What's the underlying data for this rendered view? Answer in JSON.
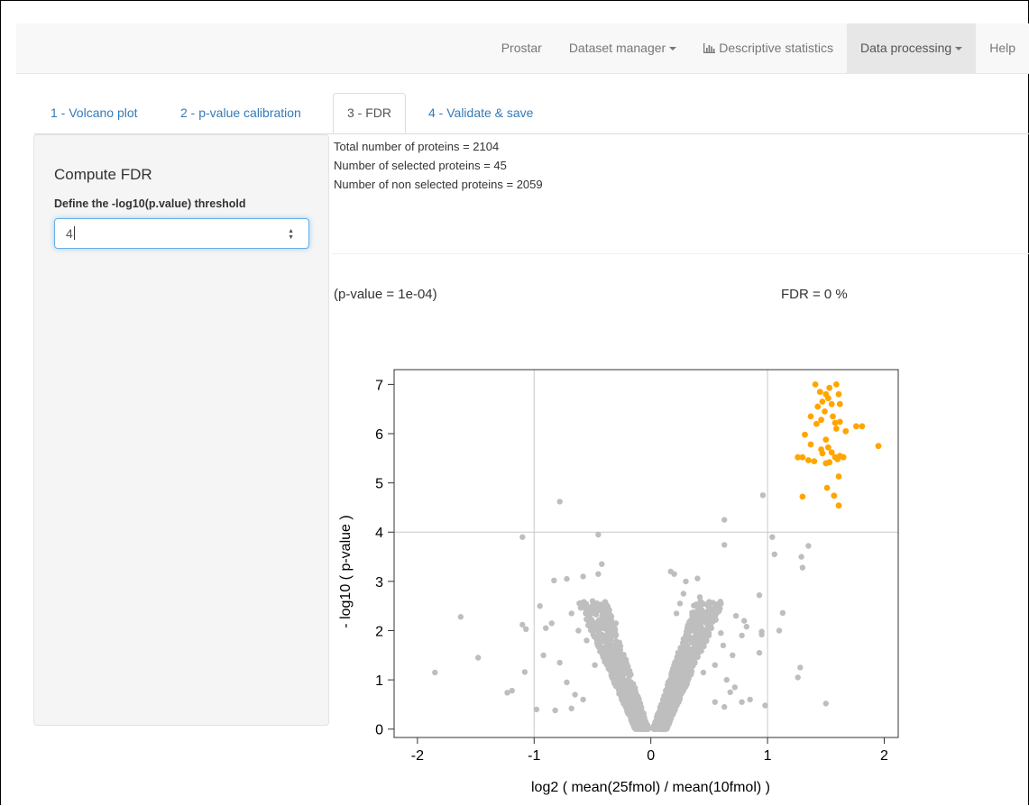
{
  "navbar": {
    "items": [
      {
        "label": "Prostar",
        "active": false,
        "dropdown": false,
        "icon": ""
      },
      {
        "label": "Dataset manager",
        "active": false,
        "dropdown": true,
        "icon": ""
      },
      {
        "label": "Descriptive statistics",
        "active": false,
        "dropdown": false,
        "icon": "bar-chart-icon"
      },
      {
        "label": "Data processing",
        "active": true,
        "dropdown": true,
        "icon": ""
      },
      {
        "label": "Help",
        "active": false,
        "dropdown": false,
        "icon": ""
      }
    ]
  },
  "tabs": [
    {
      "label": "1 - Volcano plot",
      "active": false
    },
    {
      "label": "2 - p-value calibration",
      "active": false
    },
    {
      "label": "3 - FDR",
      "active": true
    },
    {
      "label": "4 - Validate & save",
      "active": false
    }
  ],
  "sidebar": {
    "title": "Compute FDR",
    "threshold_label": "Define the -log10(p.value) threshold",
    "threshold_value": "4"
  },
  "stats": {
    "total": "Total number of proteins = 2104",
    "selected": "Number of selected proteins = 45",
    "non_selected": "Number of non selected proteins = 2059"
  },
  "pvalue_text": "(p-value = 1e-04)",
  "fdr_text": "FDR = 0 %",
  "colors": {
    "selected": "#FFA500",
    "non_selected": "#BEBEBE",
    "link": "#337ab7"
  },
  "chart_data": {
    "type": "scatter",
    "xlabel": "log2 ( mean(25fmol) / mean(10fmol) )",
    "ylabel": "- log10 ( p-value )",
    "xlim": [
      -2.2,
      2.12
    ],
    "ylim": [
      -0.17,
      7.3
    ],
    "xticks": [
      -2,
      -1,
      0,
      1,
      2
    ],
    "yticks": [
      0,
      1,
      2,
      3,
      4,
      5,
      6,
      7
    ],
    "threshold_lines": {
      "x": [
        -1,
        1
      ],
      "y": 4
    },
    "series": [
      {
        "group": "selected",
        "color": "#FFA500",
        "points": [
          [
            1.41,
            7.0
          ],
          [
            1.53,
            6.93
          ],
          [
            1.59,
            7.0
          ],
          [
            1.45,
            6.85
          ],
          [
            1.5,
            6.8
          ],
          [
            1.52,
            6.72
          ],
          [
            1.61,
            6.8
          ],
          [
            1.47,
            6.65
          ],
          [
            1.55,
            6.6
          ],
          [
            1.43,
            6.55
          ],
          [
            1.62,
            6.6
          ],
          [
            1.49,
            6.45
          ],
          [
            1.56,
            6.35
          ],
          [
            1.37,
            6.35
          ],
          [
            1.46,
            6.28
          ],
          [
            1.58,
            6.22
          ],
          [
            1.62,
            6.24
          ],
          [
            1.42,
            6.2
          ],
          [
            1.76,
            6.15
          ],
          [
            1.81,
            6.15
          ],
          [
            1.59,
            6.1
          ],
          [
            1.32,
            5.98
          ],
          [
            1.67,
            6.05
          ],
          [
            1.5,
            5.88
          ],
          [
            1.95,
            5.75
          ],
          [
            1.37,
            5.78
          ],
          [
            1.52,
            5.72
          ],
          [
            1.46,
            5.68
          ],
          [
            1.47,
            5.6
          ],
          [
            1.55,
            5.62
          ],
          [
            1.62,
            5.55
          ],
          [
            1.58,
            5.52
          ],
          [
            1.26,
            5.52
          ],
          [
            1.3,
            5.52
          ],
          [
            1.35,
            5.46
          ],
          [
            1.4,
            5.44
          ],
          [
            1.5,
            5.4
          ],
          [
            1.53,
            5.42
          ],
          [
            1.6,
            5.48
          ],
          [
            1.65,
            5.52
          ],
          [
            1.61,
            5.13
          ],
          [
            1.51,
            4.9
          ],
          [
            1.3,
            4.72
          ],
          [
            1.57,
            4.74
          ],
          [
            1.61,
            4.54
          ]
        ]
      },
      {
        "group": "non_selected",
        "color": "#BEBEBE",
        "points": [
          [
            -1.85,
            1.15
          ],
          [
            -1.63,
            2.28
          ],
          [
            -1.48,
            1.45
          ],
          [
            -1.23,
            0.74
          ],
          [
            -1.19,
            0.78
          ],
          [
            -1.1,
            2.12
          ],
          [
            -1.07,
            2.03
          ],
          [
            -1.08,
            1.16
          ],
          [
            -1.1,
            3.9
          ],
          [
            -0.78,
            4.62
          ],
          [
            -0.45,
            3.95
          ],
          [
            -0.83,
            3.02
          ],
          [
            -0.72,
            3.05
          ],
          [
            -0.58,
            3.1
          ],
          [
            -0.42,
            3.35
          ],
          [
            -0.45,
            3.15
          ],
          [
            -0.85,
            2.15
          ],
          [
            -0.95,
            2.5
          ],
          [
            -0.9,
            2.05
          ],
          [
            -0.68,
            2.35
          ],
          [
            -0.62,
            2.0
          ],
          [
            -0.55,
            1.8
          ],
          [
            -0.98,
            0.4
          ],
          [
            -0.82,
            0.38
          ],
          [
            -0.68,
            0.42
          ],
          [
            -0.92,
            1.5
          ],
          [
            -0.78,
            1.35
          ],
          [
            -0.72,
            0.95
          ],
          [
            -0.65,
            0.7
          ],
          [
            -0.58,
            0.6
          ],
          [
            0.17,
            3.2
          ],
          [
            0.2,
            3.15
          ],
          [
            0.3,
            3.0
          ],
          [
            0.4,
            3.06
          ],
          [
            0.42,
            2.68
          ],
          [
            0.5,
            2.45
          ],
          [
            0.52,
            2.2
          ],
          [
            0.6,
            1.95
          ],
          [
            0.62,
            1.7
          ],
          [
            0.7,
            1.5
          ],
          [
            0.55,
            1.3
          ],
          [
            0.45,
            1.15
          ],
          [
            0.65,
            1.0
          ],
          [
            0.72,
            0.85
          ],
          [
            0.68,
            0.75
          ],
          [
            0.78,
            0.55
          ],
          [
            0.85,
            0.6
          ],
          [
            0.63,
            0.45
          ],
          [
            0.55,
            0.55
          ],
          [
            0.63,
            4.25
          ],
          [
            0.63,
            3.74
          ],
          [
            0.96,
            4.75
          ],
          [
            1.04,
            3.9
          ],
          [
            1.06,
            3.55
          ],
          [
            1.13,
            2.36
          ],
          [
            0.95,
            1.98
          ],
          [
            0.95,
            1.92
          ],
          [
            0.93,
            1.55
          ],
          [
            0.93,
            2.72
          ],
          [
            1.1,
            2.0
          ],
          [
            0.98,
            0.48
          ],
          [
            1.26,
            1.05
          ],
          [
            1.28,
            1.25
          ],
          [
            1.35,
            3.72
          ],
          [
            1.29,
            3.5
          ],
          [
            1.3,
            3.28
          ],
          [
            1.5,
            0.52
          ],
          [
            0.8,
            2.2
          ],
          [
            0.82,
            2.08
          ],
          [
            0.78,
            1.9
          ],
          [
            0.73,
            2.3
          ],
          [
            -0.35,
            2.3
          ],
          [
            -0.3,
            2.15
          ],
          [
            -0.26,
            1.4
          ],
          [
            -0.2,
            0.5
          ],
          [
            0.25,
            2.55
          ],
          [
            0.28,
            2.75
          ],
          [
            0.22,
            2.35
          ],
          [
            -0.5,
            2.6
          ],
          [
            -0.52,
            2.45
          ],
          [
            -0.48,
            1.3
          ]
        ]
      }
    ]
  }
}
